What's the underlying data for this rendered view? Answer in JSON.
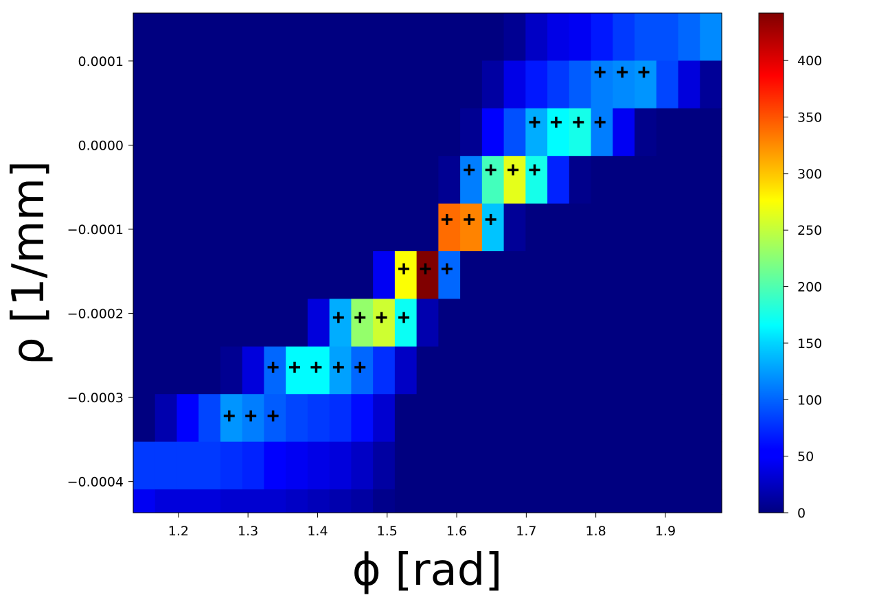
{
  "chart_data": {
    "type": "heatmap",
    "title": "",
    "xlabel": "ϕ [rad]",
    "ylabel": "ρ [1/mm]",
    "xlim": [
      1.135,
      1.981
    ],
    "ylim": [
      -0.000437,
      0.000157
    ],
    "xticks": [
      1.2,
      1.3,
      1.4,
      1.5,
      1.6,
      1.7,
      1.8,
      1.9
    ],
    "xtick_labels": [
      "1.2",
      "1.3",
      "1.4",
      "1.5",
      "1.6",
      "1.7",
      "1.8",
      "1.9"
    ],
    "yticks": [
      0.0001,
      0.0,
      -0.0001,
      -0.0002,
      -0.0003,
      -0.0004
    ],
    "ytick_labels": [
      "0.0001",
      "0.0000",
      "−0.0001",
      "−0.0002",
      "−0.0003",
      "−0.0004"
    ],
    "colormap": "jet",
    "colorbar": {
      "vmin": 0,
      "vmax": 442,
      "ticks": [
        0,
        50,
        100,
        150,
        200,
        250,
        300,
        350,
        400
      ],
      "tick_labels": [
        "0",
        "50",
        "100",
        "150",
        "200",
        "250",
        "300",
        "350",
        "400"
      ]
    },
    "grid": false,
    "x_bin_count": 27,
    "y_bin_count": 10,
    "y_bins_order": "top-to-bottom",
    "values": [
      [
        0,
        0,
        0,
        0,
        0,
        0,
        0,
        0,
        0,
        0,
        0,
        0,
        0,
        0,
        0,
        0,
        0,
        8,
        30,
        45,
        50,
        65,
        80,
        90,
        90,
        100,
        115
      ],
      [
        0,
        0,
        0,
        0,
        0,
        0,
        0,
        0,
        0,
        0,
        0,
        0,
        0,
        0,
        0,
        0,
        15,
        45,
        65,
        80,
        95,
        110,
        115,
        120,
        85,
        40,
        10
      ],
      [
        0,
        0,
        0,
        0,
        0,
        0,
        0,
        0,
        0,
        0,
        0,
        0,
        0,
        0,
        0,
        8,
        55,
        90,
        130,
        165,
        175,
        110,
        50,
        5,
        0,
        0,
        0
      ],
      [
        0,
        0,
        0,
        0,
        0,
        0,
        0,
        0,
        0,
        0,
        0,
        0,
        0,
        0,
        8,
        110,
        195,
        265,
        175,
        70,
        5,
        0,
        0,
        0,
        0,
        0,
        0
      ],
      [
        0,
        0,
        0,
        0,
        0,
        0,
        0,
        0,
        0,
        0,
        0,
        0,
        0,
        0,
        340,
        330,
        140,
        10,
        0,
        0,
        0,
        0,
        0,
        0,
        0,
        0,
        0
      ],
      [
        0,
        0,
        0,
        0,
        0,
        0,
        0,
        0,
        0,
        0,
        0,
        50,
        275,
        442,
        100,
        0,
        0,
        0,
        0,
        0,
        0,
        0,
        0,
        0,
        0,
        0,
        0
      ],
      [
        0,
        0,
        0,
        0,
        0,
        0,
        0,
        0,
        40,
        130,
        230,
        255,
        170,
        20,
        0,
        0,
        0,
        0,
        0,
        0,
        0,
        0,
        0,
        0,
        0,
        0,
        0
      ],
      [
        0,
        0,
        0,
        0,
        8,
        40,
        100,
        165,
        165,
        125,
        100,
        75,
        30,
        0,
        0,
        0,
        0,
        0,
        0,
        0,
        0,
        0,
        0,
        0,
        0,
        0,
        0
      ],
      [
        0,
        20,
        55,
        85,
        120,
        110,
        95,
        85,
        80,
        75,
        60,
        35,
        0,
        0,
        0,
        0,
        0,
        0,
        0,
        0,
        0,
        0,
        0,
        0,
        0,
        0,
        0
      ],
      [
        80,
        80,
        80,
        80,
        75,
        70,
        55,
        50,
        45,
        40,
        30,
        15,
        0,
        0,
        0,
        0,
        0,
        0,
        0,
        0,
        0,
        0,
        0,
        0,
        0,
        0,
        0
      ]
    ],
    "bottom_strip_values": [
      50,
      40,
      40,
      40,
      35,
      35,
      35,
      30,
      25,
      20,
      15,
      5,
      0,
      0,
      0,
      0,
      0,
      0,
      0,
      0,
      0,
      0,
      0,
      0,
      0,
      0,
      0
    ],
    "markers": {
      "symbol": "+",
      "color": "#000000",
      "points": [
        {
          "x": 1.806,
          "y": 8.67e-05
        },
        {
          "x": 1.838,
          "y": 8.67e-05
        },
        {
          "x": 1.869,
          "y": 8.67e-05
        },
        {
          "x": 1.712,
          "y": 2.73e-05
        },
        {
          "x": 1.743,
          "y": 2.73e-05
        },
        {
          "x": 1.775,
          "y": 2.73e-05
        },
        {
          "x": 1.806,
          "y": 2.73e-05
        },
        {
          "x": 1.618,
          "y": -2.94e-05
        },
        {
          "x": 1.649,
          "y": -2.94e-05
        },
        {
          "x": 1.681,
          "y": -2.94e-05
        },
        {
          "x": 1.712,
          "y": -2.94e-05
        },
        {
          "x": 1.586,
          "y": -8.85e-05
        },
        {
          "x": 1.618,
          "y": -8.85e-05
        },
        {
          "x": 1.649,
          "y": -8.85e-05
        },
        {
          "x": 1.524,
          "y": -0.000147
        },
        {
          "x": 1.555,
          "y": -0.000147
        },
        {
          "x": 1.586,
          "y": -0.000147
        },
        {
          "x": 1.43,
          "y": -0.000205
        },
        {
          "x": 1.461,
          "y": -0.000205
        },
        {
          "x": 1.492,
          "y": -0.000205
        },
        {
          "x": 1.524,
          "y": -0.000205
        },
        {
          "x": 1.336,
          "y": -0.000264
        },
        {
          "x": 1.367,
          "y": -0.000264
        },
        {
          "x": 1.398,
          "y": -0.000264
        },
        {
          "x": 1.43,
          "y": -0.000264
        },
        {
          "x": 1.461,
          "y": -0.000264
        },
        {
          "x": 1.273,
          "y": -0.000322
        },
        {
          "x": 1.304,
          "y": -0.000322
        },
        {
          "x": 1.336,
          "y": -0.000322
        }
      ]
    }
  }
}
